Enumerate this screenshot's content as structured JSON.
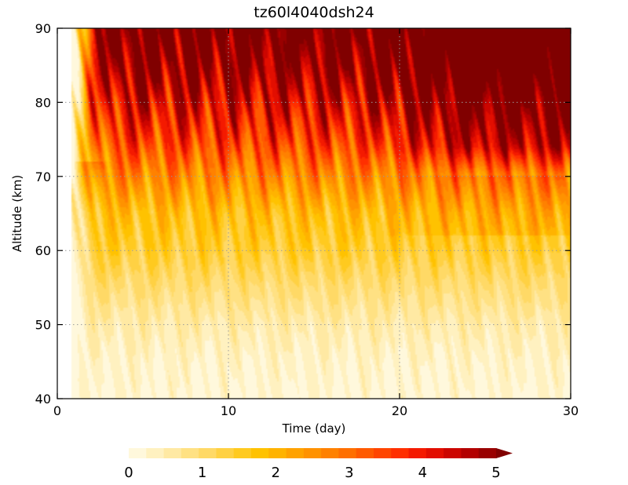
{
  "chart_data": {
    "type": "heatmap",
    "title": "tz60l4040dsh24",
    "xlabel": "Time (day)",
    "ylabel": "Altitude (km)",
    "xlim": [
      0,
      30
    ],
    "ylim": [
      40,
      90
    ],
    "x_ticks": [
      "0",
      "10",
      "20",
      "30"
    ],
    "y_ticks": [
      "40",
      "50",
      "60",
      "70",
      "80",
      "90"
    ],
    "grid": true,
    "colorbar": {
      "placement": "bottom",
      "min": 0,
      "max": 5,
      "step": 0.2,
      "extend": "max",
      "tick_labels": [
        "0",
        "1",
        "2",
        "3",
        "4",
        "5"
      ],
      "colors": [
        "#fff8dc",
        "#fff1c0",
        "#ffe9a3",
        "#ffe183",
        "#ffd966",
        "#ffd143",
        "#ffca1f",
        "#ffc200",
        "#ffb300",
        "#ffa200",
        "#ff9200",
        "#ff8100",
        "#ff6f00",
        "#ff5a00",
        "#ff4500",
        "#ff2f00",
        "#f41a00",
        "#e20e00",
        "#cc0500",
        "#b30000",
        "#990000",
        "#800000"
      ]
    },
    "data_start_day": 0.8,
    "mean_profile": [
      {
        "altitude": 40,
        "value": 0.15
      },
      {
        "altitude": 45,
        "value": 0.25
      },
      {
        "altitude": 50,
        "value": 0.45
      },
      {
        "altitude": 55,
        "value": 0.8
      },
      {
        "altitude": 60,
        "value": 1.2
      },
      {
        "altitude": 65,
        "value": 1.5
      },
      {
        "altitude": 70,
        "value": 2.2
      },
      {
        "altitude": 75,
        "value": 3.0
      },
      {
        "altitude": 80,
        "value": 3.6
      },
      {
        "altitude": 85,
        "value": 4.2
      },
      {
        "altitude": 90,
        "value": 4.6
      }
    ]
  }
}
